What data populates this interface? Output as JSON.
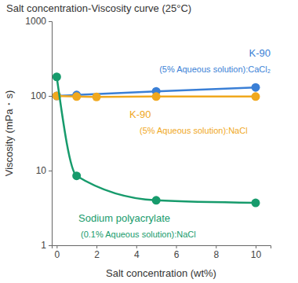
{
  "chart_data": {
    "type": "line",
    "title": "Salt concentration-Viscosity curve (25°C)",
    "x_label": "Salt concentration (wt%)",
    "y_label": "Viscosity (mPa・s)",
    "log": "y",
    "grid": false,
    "xlim": [
      -0.25,
      10.75
    ],
    "xticks": [
      0,
      2,
      4,
      6,
      8,
      10
    ],
    "ylim": [
      1,
      1000
    ],
    "yticks": [
      1,
      10,
      100,
      1000
    ],
    "series": [
      {
        "name": "K-90",
        "condition": "(5% Aqueous solution):CaCl₂",
        "color": "#3a7fd6",
        "marker": "circle",
        "line_style": "solid",
        "x": [
          0,
          1,
          5,
          10
        ],
        "values": [
          100,
          103,
          115,
          130
        ]
      },
      {
        "name": "K-90",
        "condition": "(5% Aqueous solution):NaCl",
        "color": "#f0a81e",
        "marker": "circle",
        "line_style": "solid",
        "x": [
          0,
          1,
          2,
          5,
          10
        ],
        "values": [
          100,
          98,
          97,
          98,
          98
        ]
      },
      {
        "name": "Sodium polyacrylate",
        "condition": "(0.1% Aqueous solution):NaCl",
        "color": "#179b6c",
        "marker": "circle",
        "line_style": "solid",
        "x": [
          0,
          1,
          5,
          10
        ],
        "values": [
          180,
          8.5,
          4.0,
          3.7
        ]
      }
    ]
  }
}
